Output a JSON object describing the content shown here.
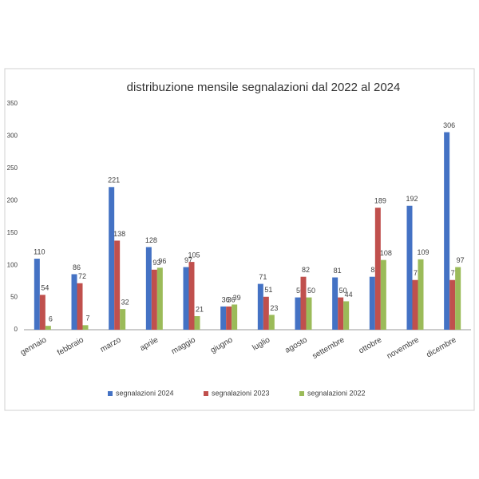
{
  "chart_data": {
    "type": "bar",
    "title": "distribuzione mensile segnalazioni dal 2022 al 2024",
    "categories": [
      "gennaio",
      "febbraio",
      "marzo",
      "aprile",
      "maggio",
      "giugno",
      "luglio",
      "agosto",
      "settembre",
      "ottobre",
      "novembre",
      "dicembre"
    ],
    "series": [
      {
        "name": "segnalazioni 2024",
        "color": "#4472c4",
        "values": [
          110,
          86,
          221,
          128,
          97,
          36,
          71,
          50,
          81,
          82,
          192,
          306
        ]
      },
      {
        "name": "segnalazioni 2023",
        "color": "#c0504d",
        "values": [
          54,
          72,
          138,
          93,
          105,
          36,
          51,
          82,
          50,
          189,
          77,
          77
        ]
      },
      {
        "name": "segnalazioni 2022",
        "color": "#9bbb59",
        "values": [
          6,
          7,
          32,
          96,
          21,
          39,
          23,
          50,
          44,
          108,
          109,
          97
        ]
      }
    ],
    "ylim": [
      0,
      350
    ],
    "yticks": [
      0,
      50,
      100,
      150,
      200,
      250,
      300,
      350
    ],
    "grid": false,
    "legend": "bottom"
  }
}
